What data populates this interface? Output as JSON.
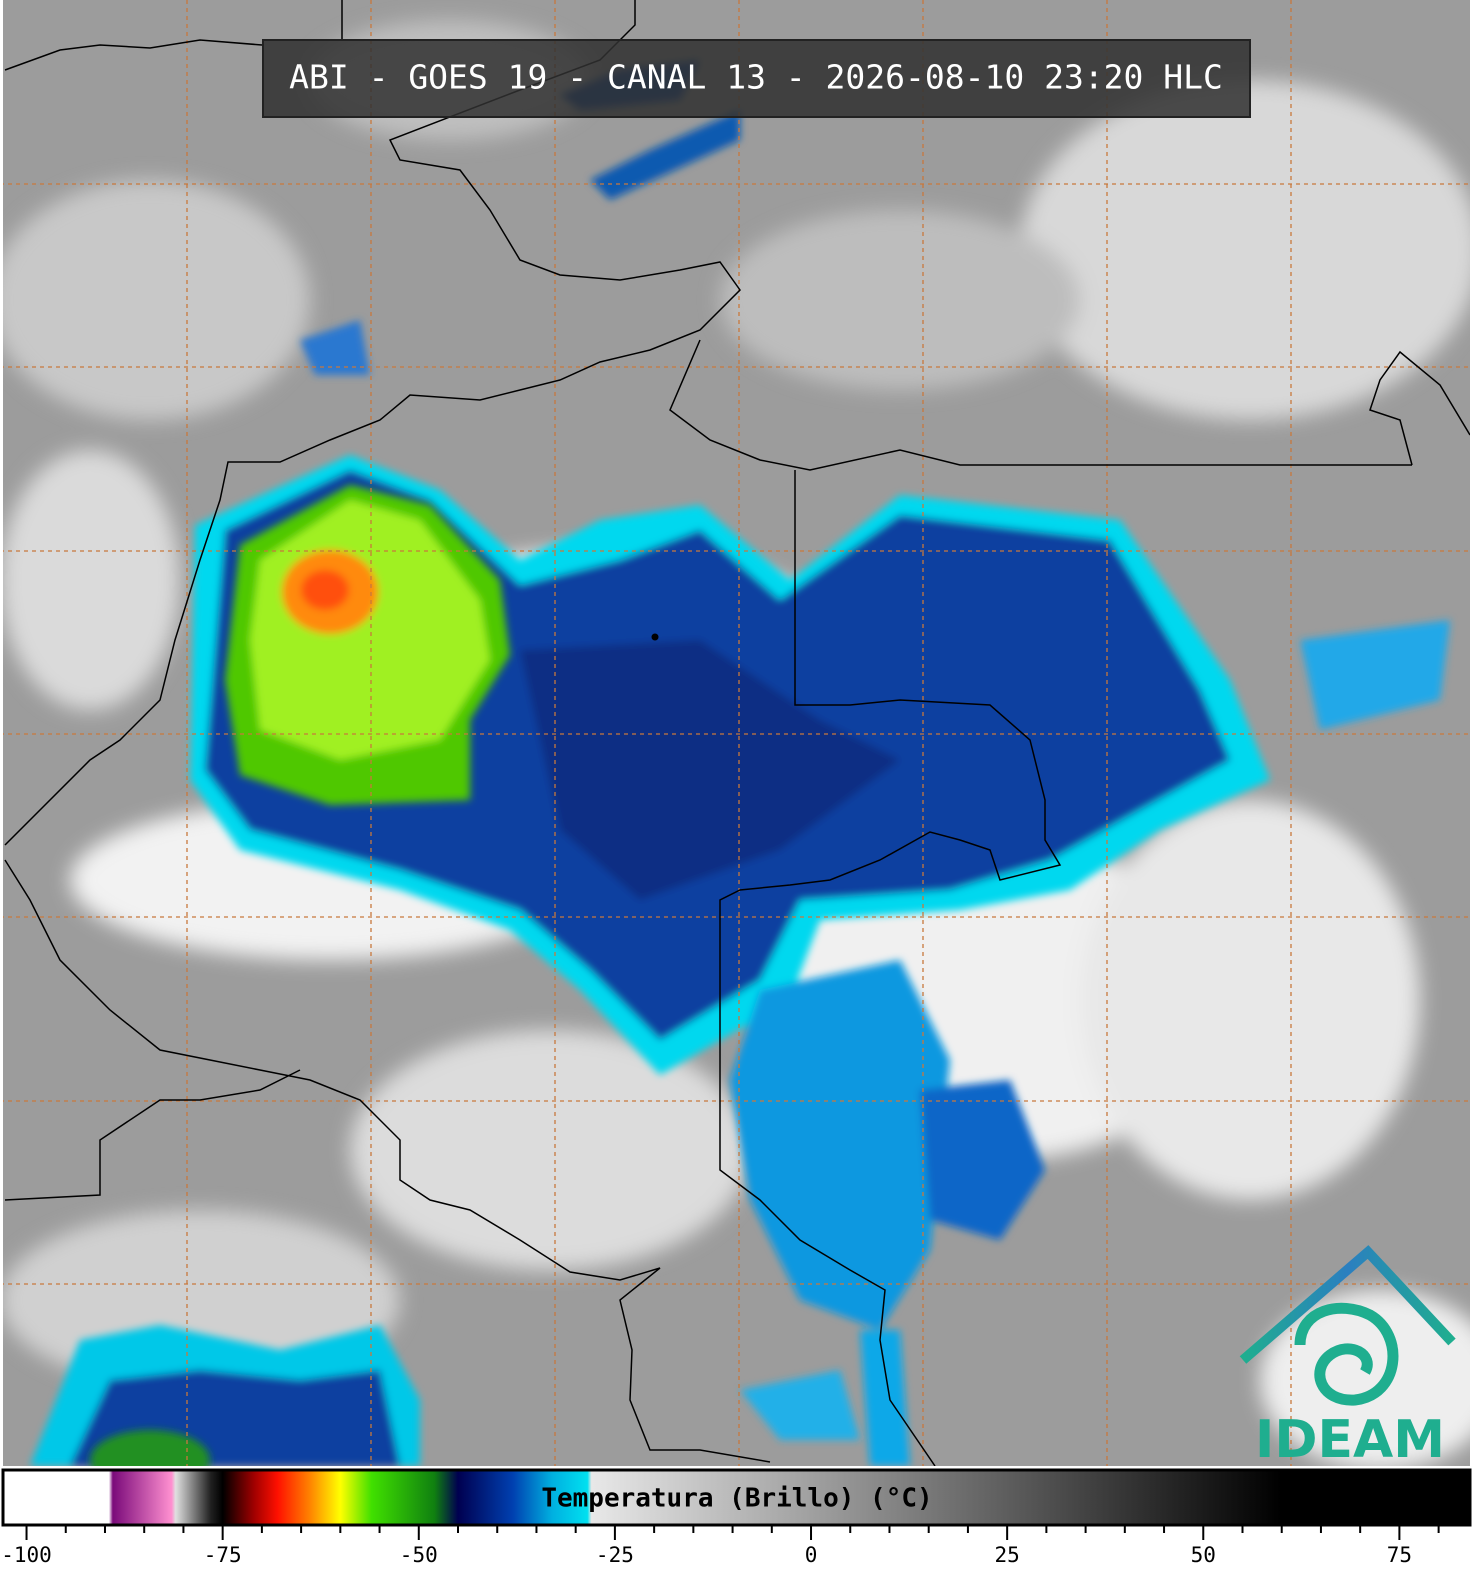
{
  "header": {
    "title": "ABI - GOES 19 - CANAL 13 - 2026-08-10 23:20 HLC"
  },
  "colorbar": {
    "label": "Temperatura (Brillo) (°C)",
    "lim": [
      -103,
      84
    ],
    "ticks": [
      -100,
      -75,
      -50,
      -25,
      0,
      25,
      50,
      75
    ],
    "minor_ticks": [
      -95,
      -90,
      -85,
      -80,
      -70,
      -65,
      -60,
      -55,
      -45,
      -40,
      -35,
      -30,
      -20,
      -15,
      -10,
      -5,
      5,
      10,
      15,
      20,
      30,
      35,
      40,
      45,
      55,
      60,
      65,
      70,
      80
    ],
    "stops": [
      {
        "value": -103,
        "color": "#ffffff"
      },
      {
        "value": -89.5,
        "color": "#ffffff"
      },
      {
        "value": -89,
        "color": "#7a0a7a"
      },
      {
        "value": -81.5,
        "color": "#ff90d0"
      },
      {
        "value": -81,
        "color": "#e0e0e0"
      },
      {
        "value": -76.5,
        "color": "#202020"
      },
      {
        "value": -75,
        "color": "#000000"
      },
      {
        "value": -71,
        "color": "#a00000"
      },
      {
        "value": -68,
        "color": "#ff1000"
      },
      {
        "value": -64,
        "color": "#ff8000"
      },
      {
        "value": -60,
        "color": "#ffff00"
      },
      {
        "value": -56,
        "color": "#40e000"
      },
      {
        "value": -48,
        "color": "#108010"
      },
      {
        "value": -45,
        "color": "#000050"
      },
      {
        "value": -38,
        "color": "#0040b0"
      },
      {
        "value": -33,
        "color": "#00b0e0"
      },
      {
        "value": -28.5,
        "color": "#00e0f0"
      },
      {
        "value": -28,
        "color": "#e8e8e8"
      },
      {
        "value": 0,
        "color": "#a0a0a0"
      },
      {
        "value": 30,
        "color": "#505050"
      },
      {
        "value": 60,
        "color": "#000000"
      },
      {
        "value": 84,
        "color": "#000000"
      }
    ]
  },
  "logo": {
    "text": "IDEAM"
  }
}
